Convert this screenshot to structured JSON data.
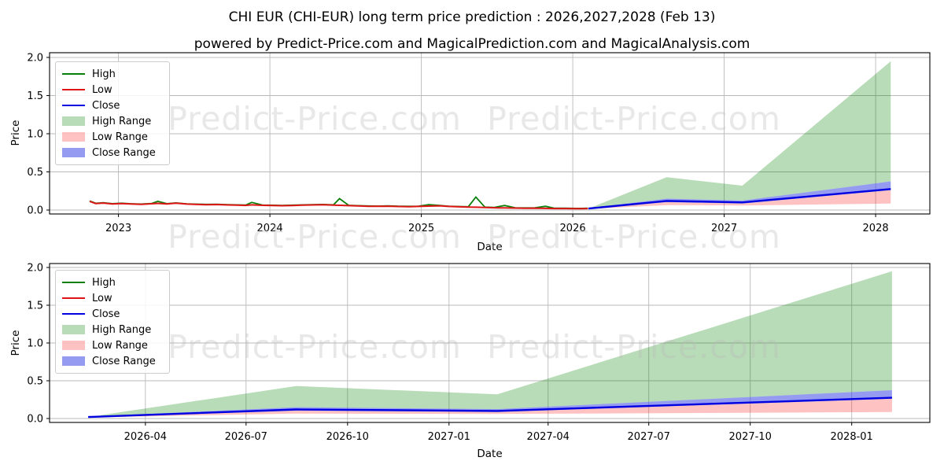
{
  "figure": {
    "title": "CHI EUR (CHI-EUR) long term price prediction : 2026,2027,2028 (Feb 13)",
    "subtitle": "powered by Predict-Price.com and MagicalPrediction.com and MagicalAnalysis.com"
  },
  "watermark": {
    "text": "Predict-Price.com",
    "color": "rgba(186,186,186,0.33)"
  },
  "colors": {
    "high_line": "#0a800a",
    "low_line": "#dd1515",
    "close_line": "#0000e0",
    "high_range": "rgba(0,128,0,0.28)",
    "low_range": "rgba(255,30,30,0.27)",
    "close_range": "rgba(45,55,230,0.5)",
    "grid": "#b9b9b9",
    "spine": "#000000",
    "text": "#000000"
  },
  "legend": {
    "items": [
      {
        "label": "High",
        "swatch": "line",
        "color_key": "high_line"
      },
      {
        "label": "Low",
        "swatch": "line",
        "color_key": "low_line"
      },
      {
        "label": "Close",
        "swatch": "line",
        "color_key": "close_line"
      },
      {
        "label": "High Range",
        "swatch": "patch",
        "color_key": "high_range"
      },
      {
        "label": "Low Range",
        "swatch": "patch",
        "color_key": "low_range"
      },
      {
        "label": "Close Range",
        "swatch": "patch",
        "color_key": "close_range"
      }
    ]
  },
  "chart_data": [
    {
      "type": "line",
      "name": "full-history-and-prediction",
      "xlabel": "Date",
      "ylabel": "Price",
      "xlim": [
        2022.545,
        2028.358
      ],
      "ylim": [
        -0.0515,
        2.062
      ],
      "grid": true,
      "yticks": {
        "values": [
          0,
          0.5,
          1,
          1.5,
          2
        ],
        "labels": [
          "0.0",
          "0.5",
          "1.0",
          "1.5",
          "2.0"
        ]
      },
      "xticks": {
        "values": [
          2023,
          2024,
          2025,
          2026,
          2027,
          2028
        ],
        "labels": [
          "2023",
          "2024",
          "2025",
          "2026",
          "2027",
          "2028"
        ]
      },
      "history": {
        "x": [
          2022.81,
          2022.85,
          2022.9,
          2022.96,
          2023.02,
          2023.08,
          2023.15,
          2023.22,
          2023.26,
          2023.32,
          2023.38,
          2023.45,
          2023.52,
          2023.58,
          2023.65,
          2023.72,
          2023.78,
          2023.84,
          2023.88,
          2023.95,
          2024.02,
          2024.08,
          2024.15,
          2024.22,
          2024.28,
          2024.35,
          2024.42,
          2024.46,
          2024.52,
          2024.58,
          2024.65,
          2024.72,
          2024.78,
          2024.85,
          2024.92,
          2024.98,
          2025.05,
          2025.12,
          2025.18,
          2025.25,
          2025.31,
          2025.36,
          2025.42,
          2025.48,
          2025.55,
          2025.62,
          2025.68,
          2025.75,
          2025.82,
          2025.88,
          2025.95,
          2026.02,
          2026.06,
          2026.1
        ],
        "low": [
          0.115,
          0.085,
          0.092,
          0.08,
          0.086,
          0.079,
          0.074,
          0.083,
          0.088,
          0.08,
          0.09,
          0.078,
          0.073,
          0.07,
          0.072,
          0.067,
          0.064,
          0.061,
          0.068,
          0.062,
          0.059,
          0.057,
          0.06,
          0.064,
          0.067,
          0.069,
          0.064,
          0.062,
          0.058,
          0.054,
          0.05,
          0.048,
          0.051,
          0.046,
          0.044,
          0.047,
          0.052,
          0.056,
          0.047,
          0.042,
          0.039,
          0.037,
          0.034,
          0.03,
          0.028,
          0.026,
          0.024,
          0.025,
          0.022,
          0.02,
          0.02,
          0.018,
          0.018,
          0.02
        ],
        "high": [
          0.119,
          0.089,
          0.096,
          0.084,
          0.09,
          0.083,
          0.078,
          0.087,
          0.115,
          0.084,
          0.094,
          0.082,
          0.077,
          0.074,
          0.076,
          0.071,
          0.068,
          0.065,
          0.1,
          0.066,
          0.063,
          0.061,
          0.064,
          0.068,
          0.071,
          0.073,
          0.068,
          0.15,
          0.062,
          0.058,
          0.054,
          0.052,
          0.055,
          0.05,
          0.048,
          0.051,
          0.07,
          0.06,
          0.051,
          0.046,
          0.043,
          0.17,
          0.038,
          0.034,
          0.06,
          0.03,
          0.028,
          0.029,
          0.05,
          0.024,
          0.024,
          0.022,
          0.022,
          0.024
        ]
      },
      "prediction": {
        "x": [
          2026.104,
          2026.62,
          2027.12,
          2028.1
        ],
        "high": [
          0.02,
          0.43,
          0.32,
          1.95
        ],
        "close_upper": [
          0.025,
          0.15,
          0.125,
          0.375
        ],
        "close": [
          0.02,
          0.12,
          0.1,
          0.275
        ],
        "close_lower": [
          0.015,
          0.103,
          0.085,
          0.26
        ],
        "low": [
          0.015,
          0.065,
          0.06,
          0.085
        ]
      }
    },
    {
      "type": "line",
      "name": "prediction-zoom",
      "xlabel": "Date",
      "ylabel": "Price",
      "xlim": [
        2026.008,
        2028.194
      ],
      "ylim": [
        -0.052,
        2.052
      ],
      "grid": true,
      "yticks": {
        "values": [
          0,
          0.5,
          1,
          1.5,
          2
        ],
        "labels": [
          "0.0",
          "0.5",
          "1.0",
          "1.5",
          "2.0"
        ]
      },
      "xticks": {
        "values": [
          2026.246,
          2026.496,
          2026.748,
          2027.0,
          2027.246,
          2027.496,
          2027.748,
          2028.0
        ],
        "labels": [
          "2026-04",
          "2026-07",
          "2026-10",
          "2027-01",
          "2027-04",
          "2027-07",
          "2027-10",
          "2028-01"
        ]
      },
      "prediction": {
        "x": [
          2026.104,
          2026.62,
          2027.12,
          2028.1
        ],
        "high": [
          0.02,
          0.43,
          0.32,
          1.95
        ],
        "close_upper": [
          0.025,
          0.15,
          0.125,
          0.375
        ],
        "close": [
          0.02,
          0.12,
          0.1,
          0.275
        ],
        "close_lower": [
          0.015,
          0.103,
          0.085,
          0.26
        ],
        "low": [
          0.015,
          0.065,
          0.06,
          0.085
        ]
      }
    }
  ]
}
